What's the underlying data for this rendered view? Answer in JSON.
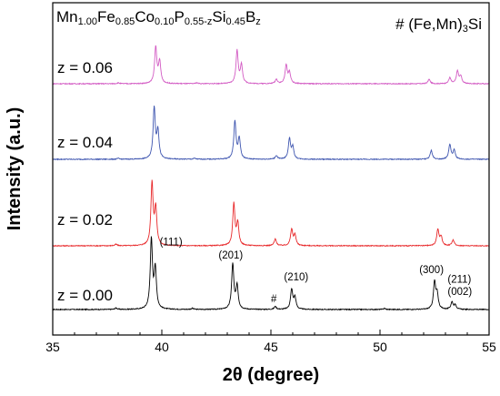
{
  "chart_data": {
    "type": "line",
    "title": {
      "parts": [
        {
          "text": "Mn",
          "sub": false
        },
        {
          "text": "1.00",
          "sub": true
        },
        {
          "text": "Fe",
          "sub": false
        },
        {
          "text": "0.85",
          "sub": true
        },
        {
          "text": "Co",
          "sub": false
        },
        {
          "text": "0.10",
          "sub": true
        },
        {
          "text": "P",
          "sub": false
        },
        {
          "text": "0.55-z",
          "sub": true
        },
        {
          "text": "Si",
          "sub": false
        },
        {
          "text": "0.45",
          "sub": true
        },
        {
          "text": "B",
          "sub": false
        },
        {
          "text": "z",
          "sub": true
        }
      ]
    },
    "legend_note": {
      "parts": [
        {
          "text": "# (Fe,Mn)",
          "sub": false
        },
        {
          "text": "3",
          "sub": true
        },
        {
          "text": "Si",
          "sub": false
        }
      ]
    },
    "xlabel": "2θ (degree)",
    "ylabel": "Intensity (a.u.)",
    "xlim": [
      35,
      55
    ],
    "xticks": [
      35,
      40,
      45,
      50,
      55
    ],
    "yticks_shown": false,
    "series": [
      {
        "name": "z = 0.00",
        "color": "#000000",
        "baseline": 0.0,
        "peaks": [
          {
            "x": 37.9,
            "h": 0.02
          },
          {
            "x": 39.52,
            "h": 0.95
          },
          {
            "x": 39.7,
            "h": 0.55
          },
          {
            "x": 41.4,
            "h": 0.015
          },
          {
            "x": 43.25,
            "h": 0.62
          },
          {
            "x": 43.45,
            "h": 0.32
          },
          {
            "x": 45.2,
            "h": 0.04
          },
          {
            "x": 45.95,
            "h": 0.27
          },
          {
            "x": 46.1,
            "h": 0.16
          },
          {
            "x": 50.2,
            "h": 0.015
          },
          {
            "x": 52.5,
            "h": 0.37
          },
          {
            "x": 52.62,
            "h": 0.2
          },
          {
            "x": 53.3,
            "h": 0.1
          },
          {
            "x": 53.45,
            "h": 0.06
          }
        ]
      },
      {
        "name": "z = 0.02",
        "color": "#e8282a",
        "baseline": 0.0,
        "peaks": [
          {
            "x": 37.9,
            "h": 0.02
          },
          {
            "x": 39.55,
            "h": 0.85
          },
          {
            "x": 39.72,
            "h": 0.5
          },
          {
            "x": 43.3,
            "h": 0.57
          },
          {
            "x": 43.48,
            "h": 0.3
          },
          {
            "x": 45.2,
            "h": 0.09
          },
          {
            "x": 45.95,
            "h": 0.22
          },
          {
            "x": 46.1,
            "h": 0.14
          },
          {
            "x": 52.65,
            "h": 0.22
          },
          {
            "x": 52.8,
            "h": 0.12
          },
          {
            "x": 53.35,
            "h": 0.08
          }
        ]
      },
      {
        "name": "z = 0.04",
        "color": "#3f56b0",
        "baseline": 0.0,
        "peaks": [
          {
            "x": 38.0,
            "h": 0.012
          },
          {
            "x": 39.65,
            "h": 0.7
          },
          {
            "x": 39.82,
            "h": 0.38
          },
          {
            "x": 41.5,
            "h": 0.012
          },
          {
            "x": 43.35,
            "h": 0.52
          },
          {
            "x": 43.55,
            "h": 0.28
          },
          {
            "x": 45.25,
            "h": 0.05
          },
          {
            "x": 45.85,
            "h": 0.28
          },
          {
            "x": 46.0,
            "h": 0.16
          },
          {
            "x": 52.35,
            "h": 0.12
          },
          {
            "x": 53.2,
            "h": 0.2
          },
          {
            "x": 53.4,
            "h": 0.12
          }
        ]
      },
      {
        "name": "z = 0.06",
        "color": "#d35cc4",
        "baseline": 0.0,
        "peaks": [
          {
            "x": 38.0,
            "h": 0.012
          },
          {
            "x": 39.72,
            "h": 0.5
          },
          {
            "x": 39.9,
            "h": 0.3
          },
          {
            "x": 41.6,
            "h": 0.012
          },
          {
            "x": 43.45,
            "h": 0.45
          },
          {
            "x": 43.65,
            "h": 0.25
          },
          {
            "x": 45.25,
            "h": 0.06
          },
          {
            "x": 45.7,
            "h": 0.25
          },
          {
            "x": 45.85,
            "h": 0.15
          },
          {
            "x": 52.25,
            "h": 0.06
          },
          {
            "x": 53.2,
            "h": 0.08
          },
          {
            "x": 53.55,
            "h": 0.17
          },
          {
            "x": 53.7,
            "h": 0.1
          }
        ]
      }
    ],
    "peak_annotations": [
      {
        "label": "(111)",
        "x": 39.9,
        "y": 0.88
      },
      {
        "label": "(201)",
        "x": 42.6,
        "y": 0.7
      },
      {
        "label": "(210)",
        "x": 45.6,
        "y": 0.4
      },
      {
        "label": "(300)",
        "x": 51.8,
        "y": 0.5
      },
      {
        "label": "(211)",
        "x": 53.1,
        "y": 0.37
      },
      {
        "label": "(002)",
        "x": 53.1,
        "y": 0.2
      },
      {
        "label": "#",
        "x": 45.0,
        "y": 0.1
      }
    ]
  }
}
